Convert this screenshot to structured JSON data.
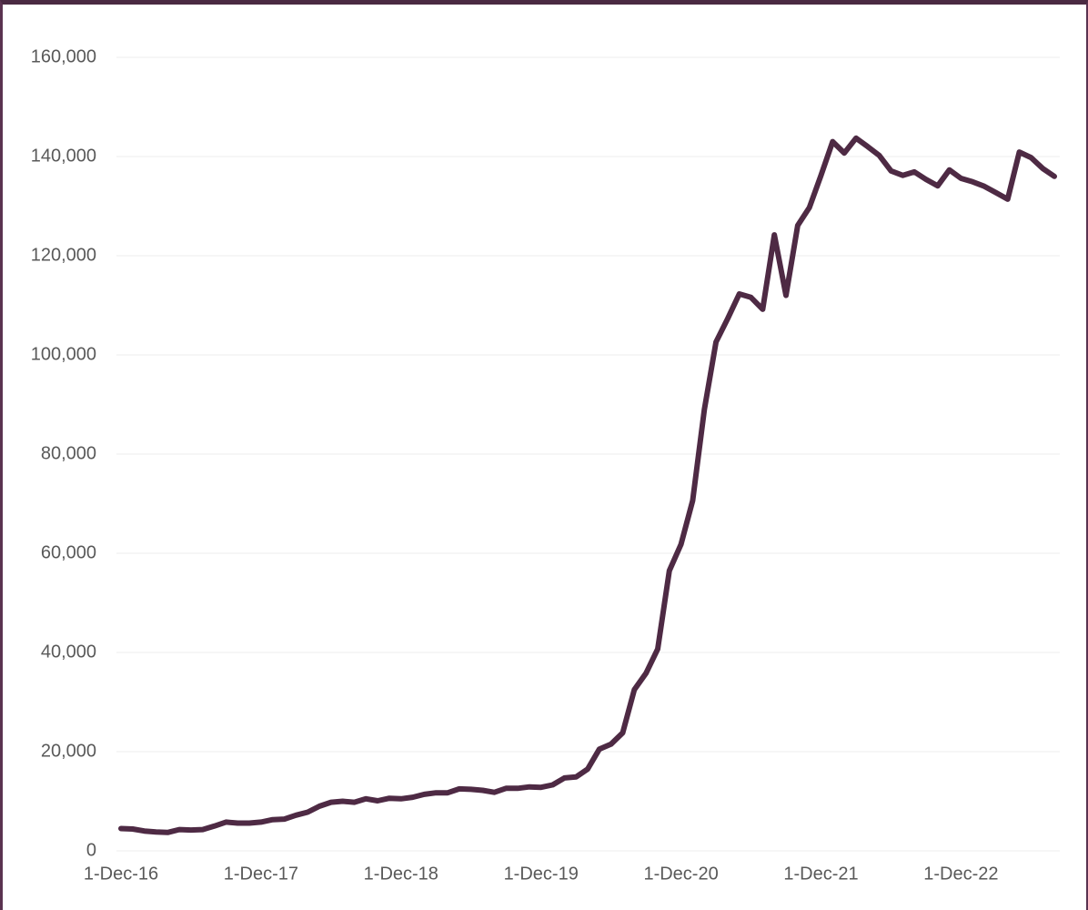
{
  "chart_data": {
    "type": "line",
    "categories": [
      "1-Dec-16",
      null,
      null,
      null,
      null,
      null,
      null,
      null,
      null,
      null,
      null,
      null,
      "1-Dec-17",
      null,
      null,
      null,
      null,
      null,
      null,
      null,
      null,
      null,
      null,
      null,
      "1-Dec-18",
      null,
      null,
      null,
      null,
      null,
      null,
      null,
      null,
      null,
      null,
      null,
      "1-Dec-19",
      null,
      null,
      null,
      null,
      null,
      null,
      null,
      null,
      null,
      null,
      null,
      "1-Dec-20",
      null,
      null,
      null,
      null,
      null,
      null,
      null,
      null,
      null,
      null,
      null,
      "1-Dec-21",
      null,
      null,
      null,
      null,
      null,
      null,
      null,
      null,
      null,
      null,
      null,
      "1-Dec-22",
      null,
      null,
      null,
      null,
      null,
      null,
      null,
      null
    ],
    "series": [
      {
        "color": "#4e2a44",
        "values": [
          4500,
          4400,
          4000,
          3800,
          3700,
          4300,
          4200,
          4300,
          5000,
          5800,
          5600,
          5600,
          5800,
          6300,
          6400,
          7200,
          7800,
          9000,
          9800,
          10000,
          9800,
          10500,
          10100,
          10600,
          10500,
          10800,
          11400,
          11700,
          11700,
          12500,
          12400,
          12200,
          11800,
          12600,
          12600,
          12900,
          12800,
          13300,
          14700,
          14900,
          16500,
          20500,
          21500,
          23800,
          32500,
          35800,
          40700,
          56500,
          61800,
          70600,
          89000,
          102600,
          107300,
          112300,
          111600,
          109200,
          124200,
          112000,
          126100,
          129700,
          136200,
          143000,
          140700,
          143700,
          142000,
          140200,
          137100,
          136200,
          136900,
          135400,
          134100,
          137300,
          135600,
          134900,
          134000,
          132700,
          131400,
          140900,
          139800,
          137600,
          136000
        ]
      }
    ],
    "ylim": [
      0,
      160000
    ],
    "yticks": [
      0,
      {
        "value": 20000,
        "label": "20,000"
      },
      {
        "value": 40000,
        "label": "40,000"
      },
      {
        "value": 60000,
        "label": "60,000"
      },
      {
        "value": 80000,
        "label": "80,000"
      },
      {
        "value": 100000,
        "label": "100,000"
      },
      {
        "value": 120000,
        "label": "120,000"
      },
      {
        "value": 140000,
        "label": "140,000"
      },
      {
        "value": 160000,
        "label": "160,000"
      }
    ],
    "grid": true
  }
}
